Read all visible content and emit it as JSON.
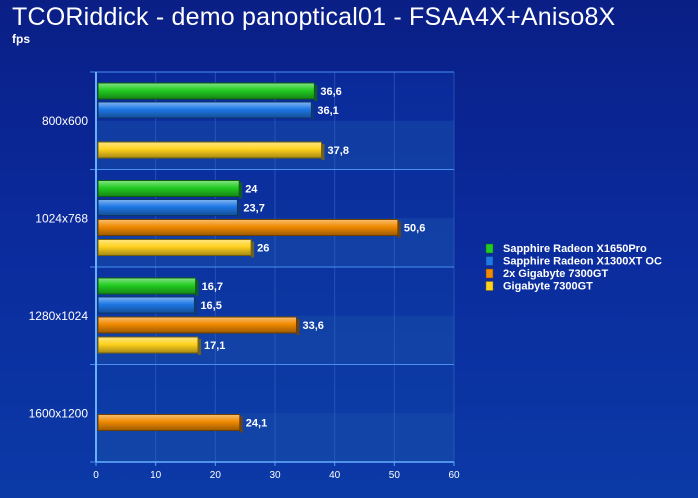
{
  "chart_data": {
    "type": "bar",
    "orientation": "horizontal",
    "title": "TCORiddick - demo panoptical01 - FSAA4X+Aniso8X",
    "subtitle": "fps",
    "categories": [
      "800x600",
      "1024x768",
      "1280x1024",
      "1600x1200"
    ],
    "series": [
      {
        "name": "Sapphire Radeon X1650Pro",
        "color": "#22cc22",
        "values": [
          36.6,
          24,
          16.7,
          null
        ],
        "labels": [
          "36,6",
          "24",
          "16,7",
          ""
        ]
      },
      {
        "name": "Sapphire Radeon X1300XT OC",
        "color": "#1e78e6",
        "values": [
          36.1,
          23.7,
          16.5,
          null
        ],
        "labels": [
          "36,1",
          "23,7",
          "16,5",
          ""
        ]
      },
      {
        "name": "2x Gigabyte 7300GT",
        "color": "#f08a00",
        "values": [
          null,
          50.6,
          33.6,
          24.1
        ],
        "labels": [
          "",
          "50,6",
          "33,6",
          "24,1"
        ]
      },
      {
        "name": "Gigabyte 7300GT",
        "color": "#ffd21e",
        "values": [
          37.8,
          26,
          17.1,
          null
        ],
        "labels": [
          "37,8",
          "26",
          "17,1",
          ""
        ]
      }
    ],
    "xlim": [
      0,
      60
    ],
    "xticks": [
      "0",
      "10",
      "20",
      "30",
      "40",
      "50",
      "60"
    ],
    "grid": true,
    "legend": "right"
  }
}
